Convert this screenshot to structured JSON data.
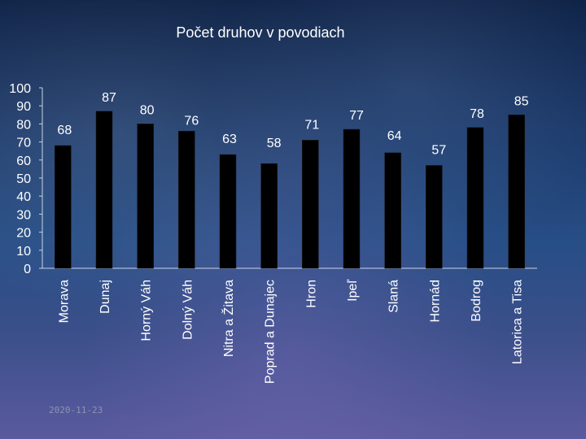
{
  "chart_data": {
    "type": "bar",
    "title": "Počet druhov v povodiach",
    "categories": [
      "Morava",
      "Dunaj",
      "Horný Váh",
      "Dolný Váh",
      "Nitra a Žitava",
      "Poprad a Dunajec",
      "Hron",
      "Ipeľ",
      "Slaná",
      "Hornád",
      "Bodrog",
      "Latorica a Tisa"
    ],
    "values": [
      68,
      87,
      80,
      76,
      63,
      58,
      71,
      77,
      64,
      57,
      78,
      85
    ],
    "ylim": [
      0,
      100
    ],
    "yticks": [
      "0",
      "10",
      "20",
      "30",
      "40",
      "50",
      "60",
      "70",
      "80",
      "90",
      "100"
    ],
    "xlabel": "",
    "ylabel": "",
    "bar_color": "#000000",
    "grid": false,
    "legend": "none"
  },
  "footer": {
    "date": "2020-11-23"
  }
}
